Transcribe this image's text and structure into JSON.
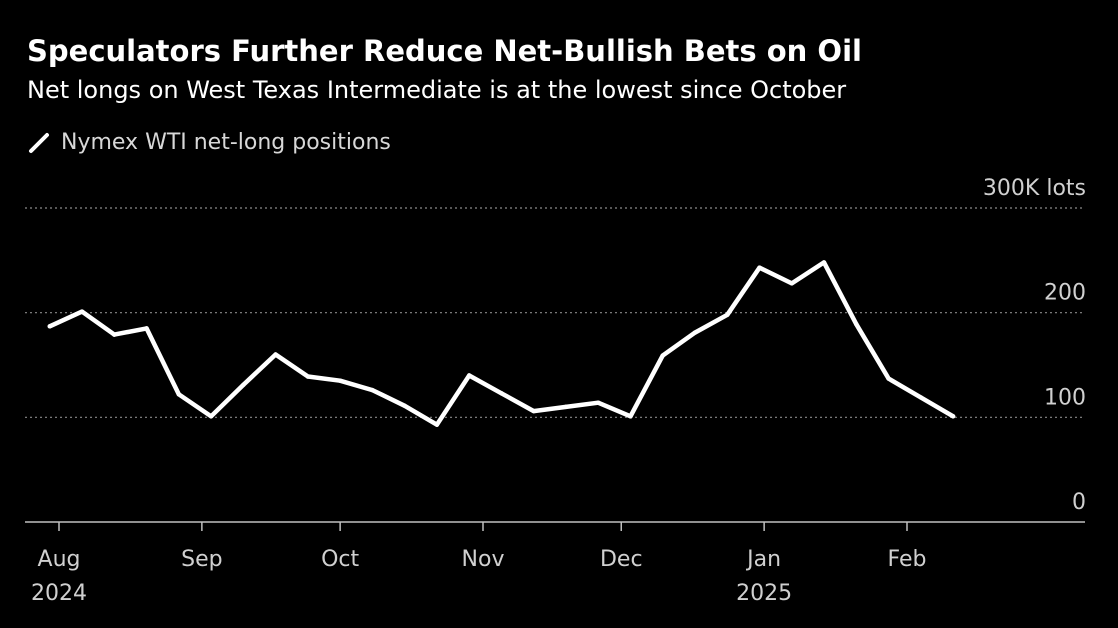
{
  "title": "Speculators Further Reduce Net-Bullish Bets on Oil",
  "subtitle": "Net longs on West Texas Intermediate is at the lowest since October",
  "legend": {
    "label": "Nymex WTI net-long positions"
  },
  "colors": {
    "background": "#000000",
    "line": "#ffffff",
    "grid": "#8a8a8a",
    "axis_text": "#d0d0d0"
  },
  "chart_data": {
    "type": "line",
    "series": [
      {
        "name": "Nymex WTI net-long positions",
        "x": [
          "2024-07-30",
          "2024-08-06",
          "2024-08-13",
          "2024-08-20",
          "2024-08-27",
          "2024-09-03",
          "2024-09-10",
          "2024-09-17",
          "2024-09-24",
          "2024-10-01",
          "2024-10-08",
          "2024-10-15",
          "2024-10-22",
          "2024-10-29",
          "2024-11-05",
          "2024-11-12",
          "2024-11-19",
          "2024-11-26",
          "2024-12-03",
          "2024-12-10",
          "2024-12-17",
          "2024-12-24",
          "2024-12-31",
          "2025-01-07",
          "2025-01-14",
          "2025-01-21",
          "2025-01-28",
          "2025-02-04",
          "2025-02-11",
          "2025-02-18"
        ],
        "values": [
          187,
          201,
          179,
          185,
          122,
          101,
          131,
          160,
          139,
          135,
          126,
          111,
          93,
          140,
          123,
          106,
          110,
          114,
          101,
          159,
          181,
          198,
          243,
          228,
          248,
          189,
          137,
          119,
          101,
          null
        ]
      }
    ],
    "y_unit_label": "300K lots",
    "y_ticks": [
      0,
      100,
      200,
      300
    ],
    "y_tick_labels": [
      "0",
      "100",
      "200",
      "300K lots"
    ],
    "ylim": [
      0,
      300
    ],
    "x_ticks": [
      {
        "date": "2024-08-01",
        "label": "Aug",
        "sublabel": "2024"
      },
      {
        "date": "2024-09-01",
        "label": "Sep",
        "sublabel": ""
      },
      {
        "date": "2024-10-01",
        "label": "Oct",
        "sublabel": ""
      },
      {
        "date": "2024-11-01",
        "label": "Nov",
        "sublabel": ""
      },
      {
        "date": "2024-12-01",
        "label": "Dec",
        "sublabel": ""
      },
      {
        "date": "2025-01-01",
        "label": "Jan",
        "sublabel": "2025"
      },
      {
        "date": "2025-02-01",
        "label": "Feb",
        "sublabel": ""
      }
    ],
    "grid": true
  }
}
